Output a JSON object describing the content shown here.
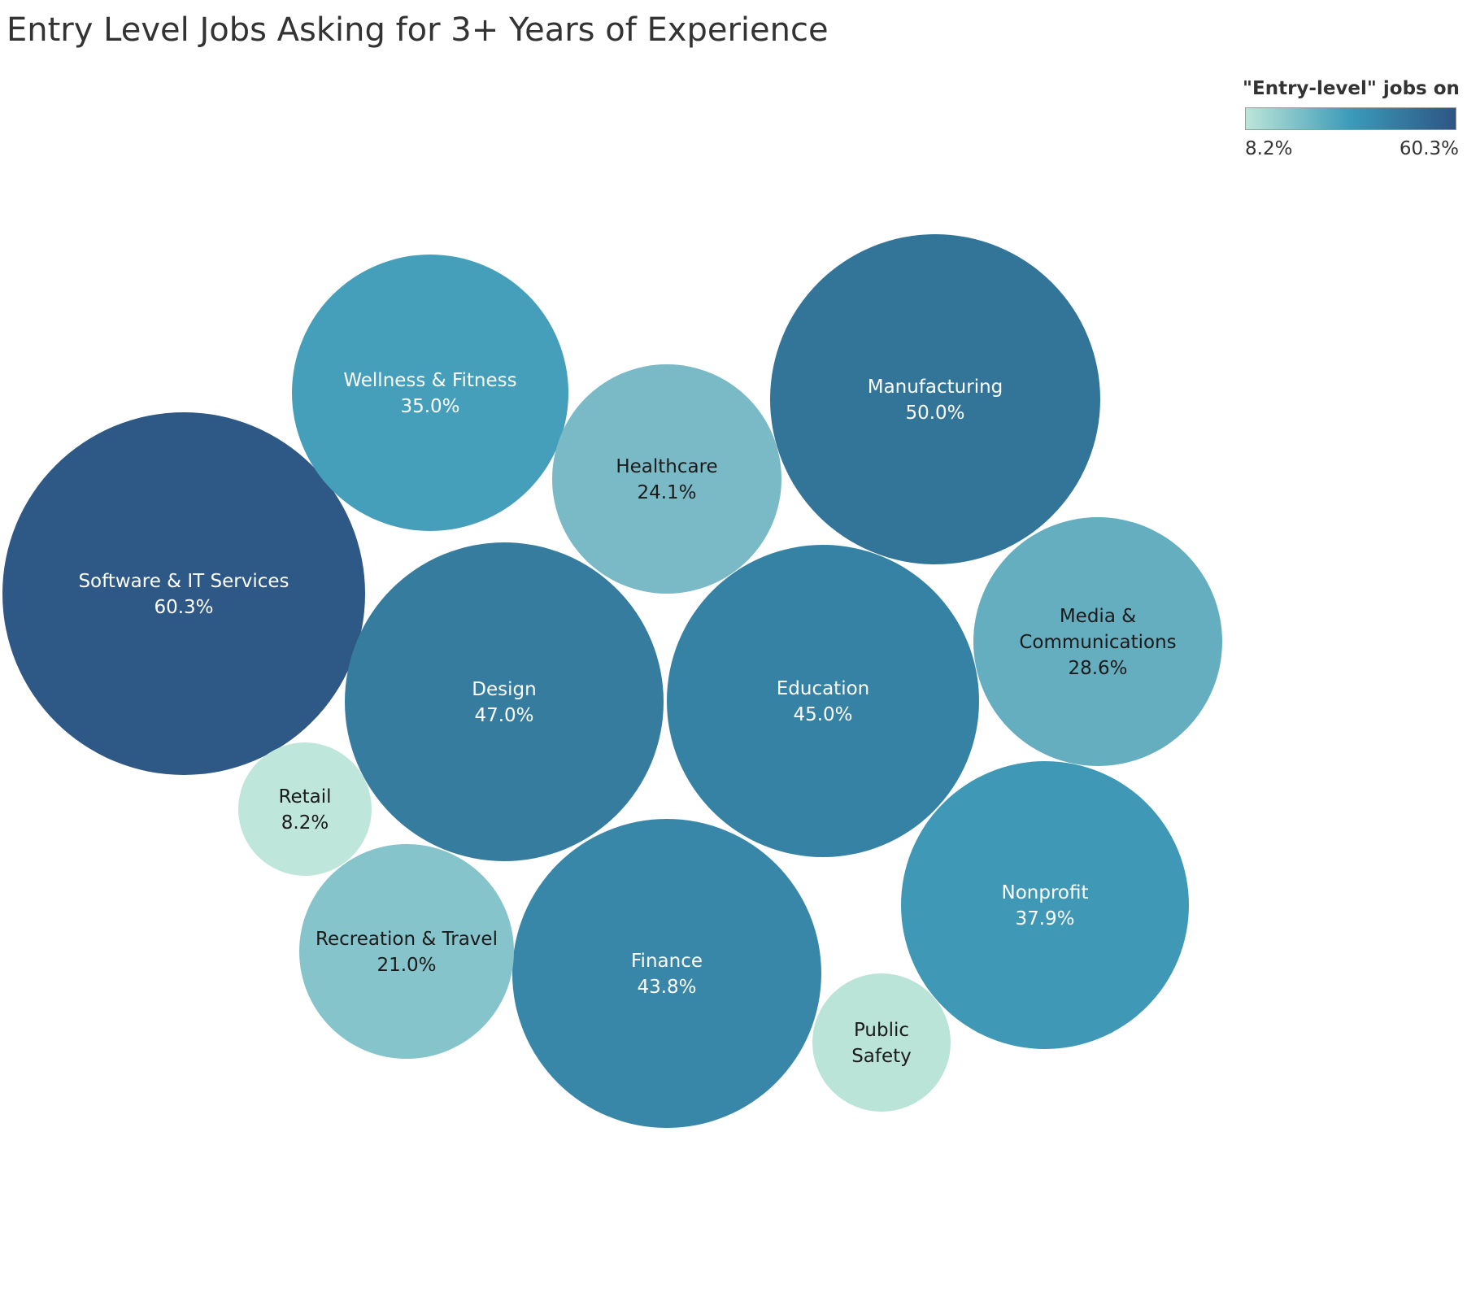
{
  "chart_data": {
    "type": "bubble",
    "title": "Entry Level Jobs Asking for 3+ Years of Experience",
    "legend": {
      "title": "\"Entry-level\" jobs on Li..",
      "min_label": "8.2%",
      "max_label": "60.3%",
      "min": 8.2,
      "max": 60.3,
      "colors": [
        "#bde5d8",
        "#3a9bb8",
        "#2e5583"
      ],
      "placement": "top-right"
    },
    "bubbles": [
      {
        "name": "Software & IT Services",
        "label_lines": [
          "Software & IT Services"
        ],
        "value": 60.3,
        "value_label": "60.3%",
        "color": "#2e5885",
        "text_color": "#ffffff"
      },
      {
        "name": "Manufacturing",
        "label_lines": [
          "Manufacturing"
        ],
        "value": 50.0,
        "value_label": "50.0%",
        "color": "#337599",
        "text_color": "#ffffff"
      },
      {
        "name": "Design",
        "label_lines": [
          "Design"
        ],
        "value": 47.0,
        "value_label": "47.0%",
        "color": "#367c9f",
        "text_color": "#ffffff"
      },
      {
        "name": "Education",
        "label_lines": [
          "Education"
        ],
        "value": 45.0,
        "value_label": "45.0%",
        "color": "#3682a5",
        "text_color": "#ffffff"
      },
      {
        "name": "Finance",
        "label_lines": [
          "Finance"
        ],
        "value": 43.8,
        "value_label": "43.8%",
        "color": "#3886a8",
        "text_color": "#ffffff"
      },
      {
        "name": "Nonprofit",
        "label_lines": [
          "Nonprofit"
        ],
        "value": 37.9,
        "value_label": "37.9%",
        "color": "#3e98b6",
        "text_color": "#ffffff"
      },
      {
        "name": "Wellness & Fitness",
        "label_lines": [
          "Wellness & Fitness"
        ],
        "value": 35.0,
        "value_label": "35.0%",
        "color": "#459fba",
        "text_color": "#ffffff"
      },
      {
        "name": "Media & Communications",
        "label_lines": [
          "Media &",
          "Communications"
        ],
        "value": 28.6,
        "value_label": "28.6%",
        "color": "#64aec0",
        "text_color": "#1a1a1a"
      },
      {
        "name": "Healthcare",
        "label_lines": [
          "Healthcare"
        ],
        "value": 24.1,
        "value_label": "24.1%",
        "color": "#79bac6",
        "text_color": "#1a1a1a"
      },
      {
        "name": "Recreation & Travel",
        "label_lines": [
          "Recreation & Travel"
        ],
        "value": 21.0,
        "value_label": "21.0%",
        "color": "#84c4ca",
        "text_color": "#1a1a1a"
      },
      {
        "name": "Public Safety",
        "label_lines": [
          "Public",
          "Safety"
        ],
        "value": null,
        "value_label": "",
        "color": "#bbe4d8",
        "text_color": "#1a1a1a"
      },
      {
        "name": "Retail",
        "label_lines": [
          "Retail"
        ],
        "value": 8.2,
        "value_label": "8.2%",
        "color": "#bfe6da",
        "text_color": "#1a1a1a"
      }
    ]
  }
}
